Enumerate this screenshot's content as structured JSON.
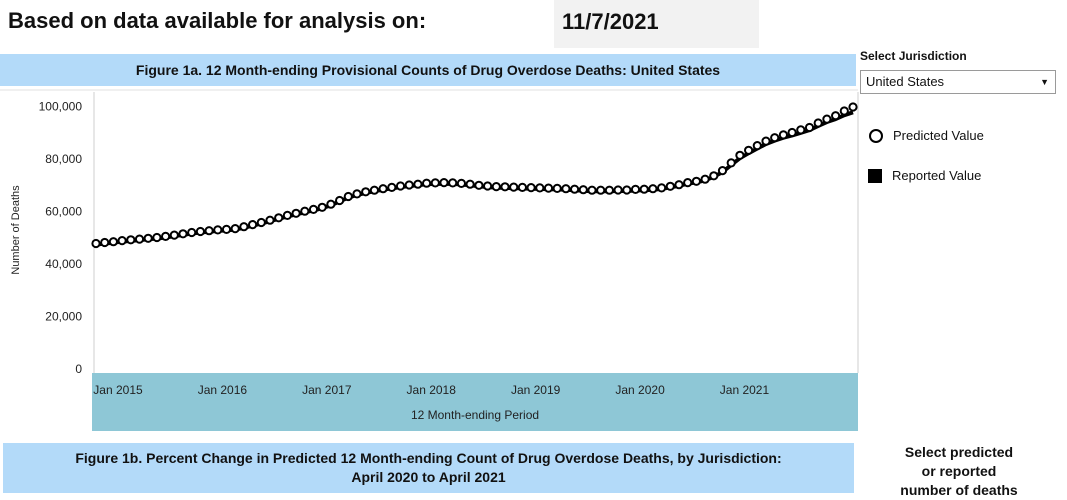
{
  "header": {
    "analysis_label": "Based on data available for analysis on:",
    "analysis_date": "11/7/2021"
  },
  "figure1a": {
    "title": "Figure 1a. 12 Month-ending Provisional Counts of Drug Overdose Deaths: United States"
  },
  "jurisdiction": {
    "label": "Select Jurisdiction",
    "selected": "United States"
  },
  "legend": {
    "predicted": "Predicted Value",
    "reported": "Reported Value"
  },
  "figure1b": {
    "title_line1": "Figure 1b. Percent Change in Predicted 12 Month-ending Count of Drug Overdose Deaths, by Jurisdiction:",
    "title_line2": "April 2020 to April 2021"
  },
  "select_measure": {
    "line1": "Select predicted",
    "line2": "or reported",
    "line3": "number of deaths"
  },
  "colors": {
    "title_band": "#b3daf9",
    "xaxis_band": "#8ec7d6",
    "series": "#000000"
  },
  "chart_data": {
    "type": "line",
    "title": "Figure 1a. 12 Month-ending Provisional Counts of Drug Overdose Deaths: United States",
    "xlabel": "12 Month-ending Period",
    "ylabel": "Number of Deaths",
    "ylim": [
      0,
      104000
    ],
    "yticks": [
      "0",
      "20,000",
      "40,000",
      "60,000",
      "80,000",
      "100,000"
    ],
    "ytick_values": [
      0,
      20000,
      40000,
      60000,
      80000,
      100000
    ],
    "xticks": [
      "Jan 2015",
      "Jan 2016",
      "Jan 2017",
      "Jan 2018",
      "Jan 2019",
      "Jan 2020",
      "Jan 2021"
    ],
    "x_start": "Jan 2015",
    "x_end": "Apr 2021",
    "grid": false,
    "legend_position": "right",
    "series": [
      {
        "name": "Predicted Value",
        "marker": "open-circle",
        "values": [
          47800,
          48200,
          48500,
          48900,
          49200,
          49500,
          49800,
          50100,
          50500,
          51000,
          51500,
          52000,
          52400,
          52700,
          53000,
          53200,
          53500,
          54200,
          55000,
          55800,
          56700,
          57600,
          58500,
          59300,
          60100,
          60800,
          61600,
          62800,
          64200,
          65700,
          66700,
          67500,
          68100,
          68700,
          69200,
          69700,
          70100,
          70400,
          70800,
          70900,
          71000,
          70900,
          70700,
          70400,
          70000,
          69700,
          69500,
          69400,
          69300,
          69200,
          69100,
          69000,
          68900,
          68800,
          68700,
          68500,
          68300,
          68100,
          68100,
          68100,
          68200,
          68200,
          68400,
          68500,
          68700,
          69000,
          69600,
          70200,
          71000,
          71500,
          72300,
          73600,
          75600,
          78500,
          81400,
          83300,
          85100,
          86800,
          88100,
          89200,
          90100,
          91100,
          92000,
          93700,
          95200,
          96500,
          98300,
          99800
        ]
      },
      {
        "name": "Reported Value",
        "marker": "line",
        "values": [
          47400,
          47800,
          48100,
          48500,
          48800,
          49100,
          49400,
          49700,
          50100,
          50600,
          51100,
          51600,
          52000,
          52300,
          52600,
          52800,
          53100,
          53800,
          54600,
          55400,
          56300,
          57200,
          58100,
          58900,
          59700,
          60400,
          61200,
          62400,
          63800,
          65300,
          66300,
          67100,
          67700,
          68300,
          68800,
          69300,
          69700,
          70000,
          70400,
          70500,
          70600,
          70500,
          70300,
          70000,
          69600,
          69300,
          69100,
          69000,
          68900,
          68800,
          68700,
          68600,
          68500,
          68400,
          68300,
          68100,
          67900,
          67700,
          67700,
          67700,
          67800,
          67800,
          68000,
          68100,
          68300,
          68600,
          69200,
          69800,
          70600,
          71100,
          71900,
          73200,
          75000,
          77700,
          80300,
          82200,
          84000,
          85700,
          87000,
          88100,
          89000,
          90000,
          91000,
          92600,
          94100,
          95200,
          96700,
          97800
        ]
      }
    ]
  }
}
